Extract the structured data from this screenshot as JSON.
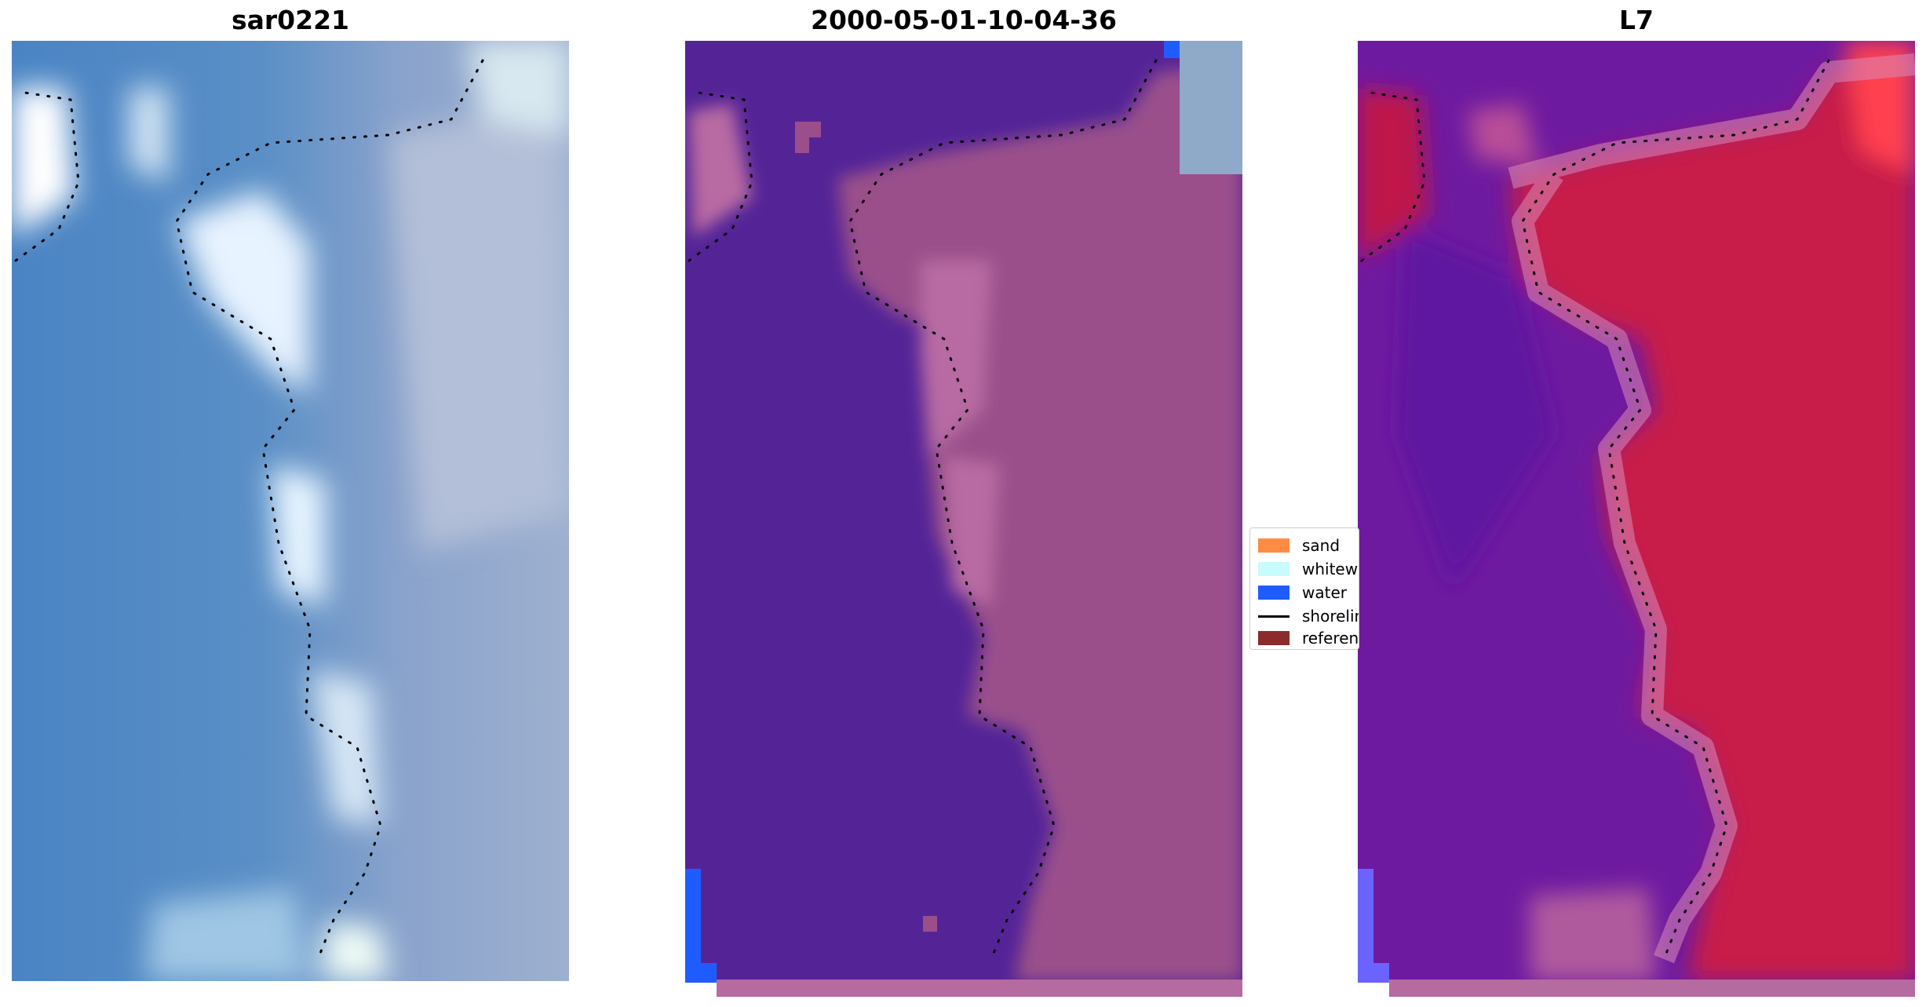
{
  "panels": [
    {
      "title": "sar0221"
    },
    {
      "title": "2000-05-01-10-04-36"
    },
    {
      "title": "L7"
    }
  ],
  "legend": {
    "items": [
      {
        "label": "sand",
        "color": "#ff8c42",
        "kind": "patch"
      },
      {
        "label": "whitewater",
        "color": "#c8fbfb",
        "kind": "patch"
      },
      {
        "label": "water",
        "color": "#1f5cff",
        "kind": "patch"
      },
      {
        "label": "shoreline",
        "color": "#000000",
        "kind": "line"
      },
      {
        "label": "reference shoreline",
        "color": "#8b2b2b",
        "kind": "patch"
      }
    ]
  },
  "colors": {
    "rgb_water": "#4f86c6",
    "rgb_land": "#9aa9cc",
    "classified_water": "#542497",
    "classified_land": "#9a4f8a",
    "l7_water": "#6e1aa0",
    "l7_land": "#c81e48",
    "buffer_bar": "#b56aa0"
  }
}
